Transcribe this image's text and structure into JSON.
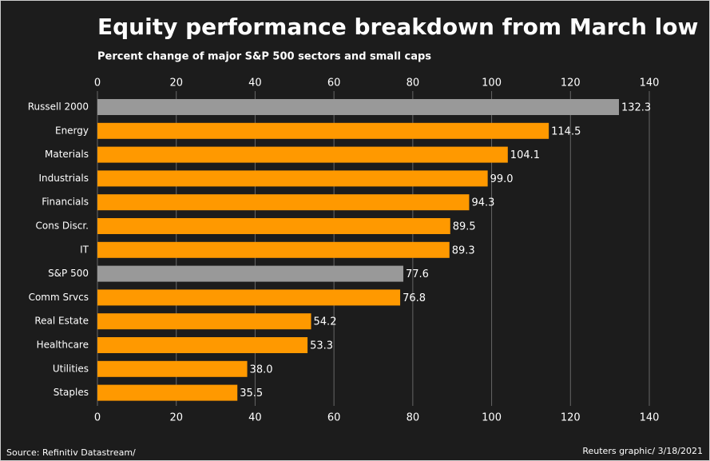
{
  "chart_data": {
    "type": "hbar",
    "title": "Equity performance breakdown from March low",
    "subtitle": "Percent change of major S&P 500 sectors and small caps",
    "source": "Source: Refinitiv Datastream/",
    "credit": "Reuters graphic/ 3/18/2021",
    "categories": [
      "Russell 2000",
      "Energy",
      "Materials",
      "Industrials",
      "Financials",
      "Cons Discr.",
      "IT",
      "S&P 500",
      "Comm Srvcs",
      "Real Estate",
      "Healthcare",
      "Utilities",
      "Staples"
    ],
    "values": [
      132.3,
      114.5,
      104.1,
      99.0,
      94.3,
      89.5,
      89.3,
      77.6,
      76.8,
      54.2,
      53.3,
      38.0,
      35.5
    ],
    "value_labels": [
      "132.3",
      "114.5",
      "104.1",
      "99.0",
      "94.3",
      "89.5",
      "89.3",
      "77.6",
      "76.8",
      "54.2",
      "53.3",
      "38.0",
      "35.5"
    ],
    "colors": [
      "#999999",
      "#ff9900",
      "#ff9900",
      "#ff9900",
      "#ff9900",
      "#ff9900",
      "#ff9900",
      "#999999",
      "#ff9900",
      "#ff9900",
      "#ff9900",
      "#ff9900",
      "#ff9900"
    ],
    "xlim": [
      0,
      140
    ],
    "xticks": [
      0,
      20,
      40,
      60,
      80,
      100,
      120,
      140
    ],
    "grid": true
  }
}
